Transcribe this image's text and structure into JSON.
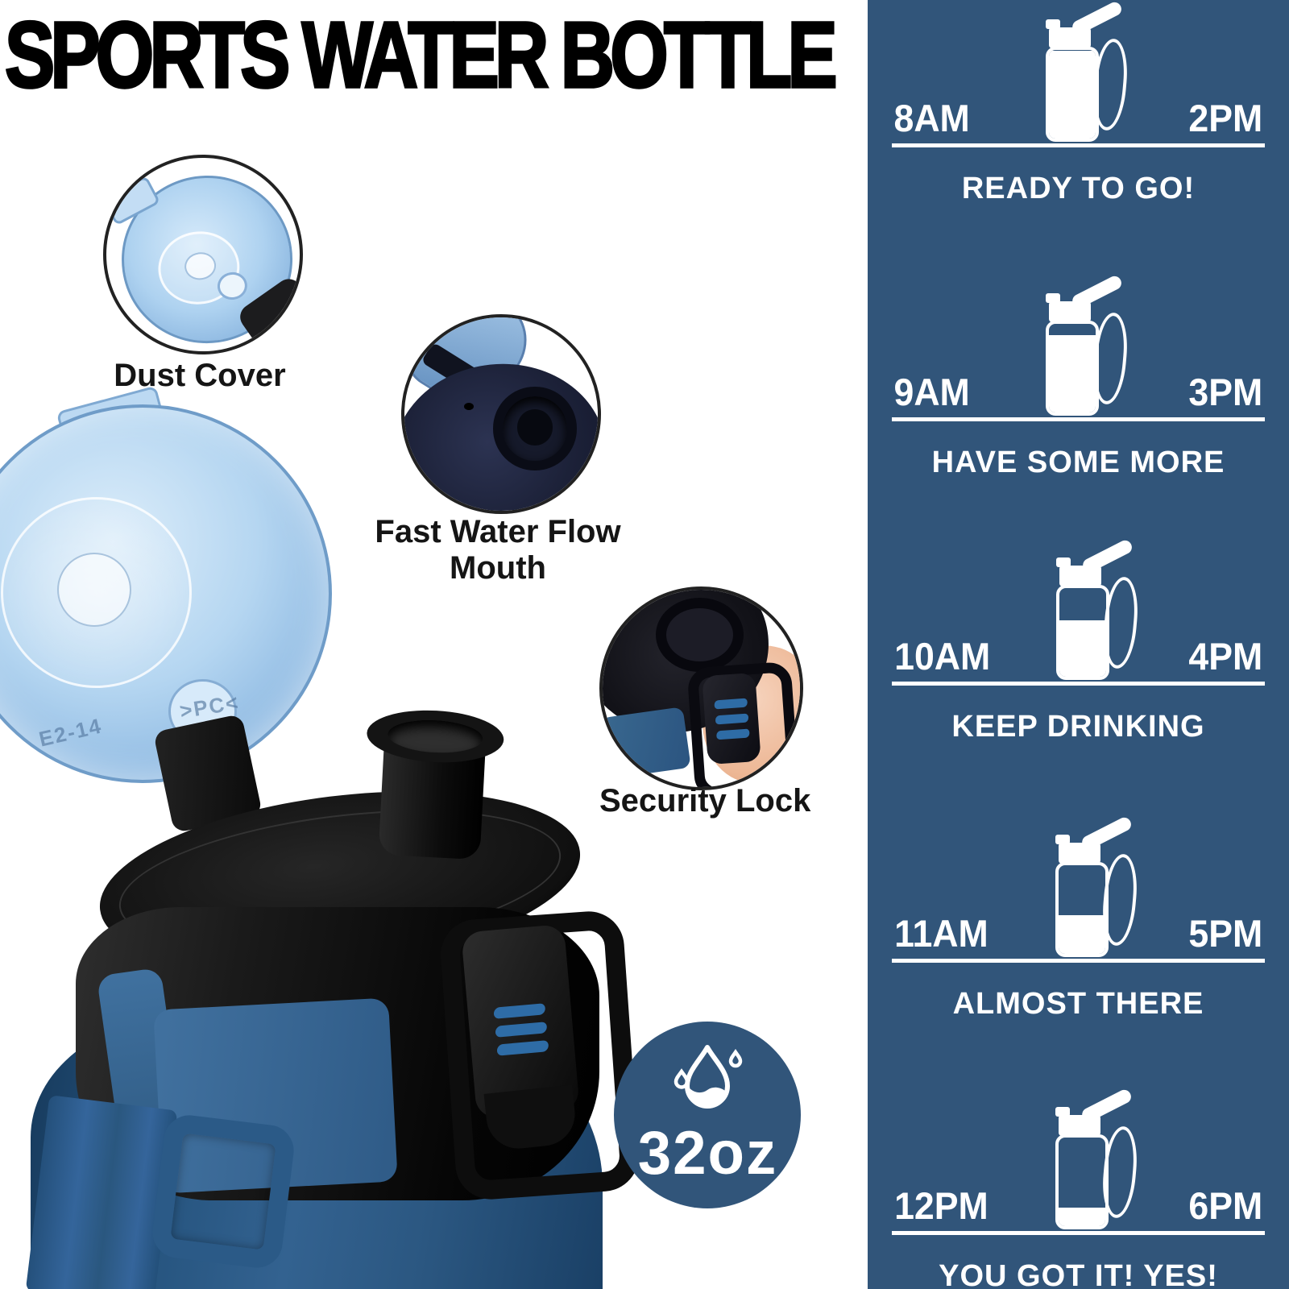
{
  "title": "SPORTS WATER BOTTLE",
  "callouts": [
    {
      "label": "Dust Cover"
    },
    {
      "label": "Fast Water Flow Mouth"
    },
    {
      "label": "Security Lock"
    }
  ],
  "badge": {
    "capacity": "32oz",
    "icon": "water-drop-icon"
  },
  "product": {
    "lid_markings": [
      "E2-14",
      ">PC<"
    ]
  },
  "schedule": {
    "rows": [
      {
        "start": "8AM",
        "end": "2PM",
        "caption": "READY TO GO!",
        "fill_percent": 100
      },
      {
        "start": "9AM",
        "end": "3PM",
        "caption": "HAVE SOME MORE",
        "fill_percent": 88
      },
      {
        "start": "10AM",
        "end": "4PM",
        "caption": "KEEP DRINKING",
        "fill_percent": 65
      },
      {
        "start": "11AM",
        "end": "5PM",
        "caption": "ALMOST THERE",
        "fill_percent": 45
      },
      {
        "start": "12PM",
        "end": "6PM",
        "caption": "YOU GOT IT! YES!",
        "fill_percent": 22
      }
    ]
  },
  "colors": {
    "panel_blue": "#31557A",
    "badge_blue": "#31557A",
    "bottle_navy": "#2D5880",
    "strap_blue": "#2B5A87",
    "flip_lid_blue": "#AECFEE",
    "lid_black": "#111111",
    "accent_stripe_blue": "#2E6CA6",
    "title_black": "#000000",
    "schedule_text_white": "#FFFFFF"
  }
}
